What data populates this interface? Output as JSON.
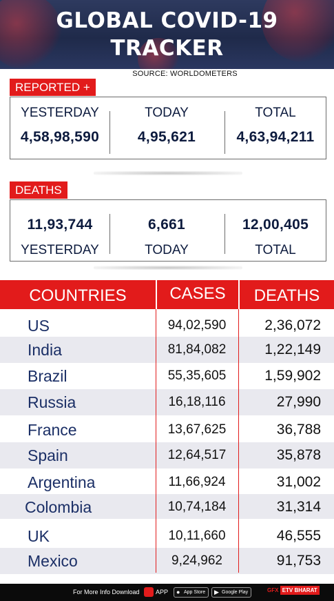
{
  "header": {
    "title_line1": "GLOBAL COVID-19",
    "title_line2": "TRACKER",
    "source": "SOURCE: WORLDOMETERS"
  },
  "reported": {
    "tag": "REPORTED +",
    "yesterday_label": "YESTERDAY",
    "today_label": "TODAY",
    "total_label": "TOTAL",
    "yesterday": "4,58,98,590",
    "today": "4,95,621",
    "total": "4,63,94,211"
  },
  "deaths": {
    "tag": "DEATHS",
    "yesterday_label": "YESTERDAY",
    "today_label": "TODAY",
    "total_label": "TOTAL",
    "yesterday": "11,93,744",
    "today": "6,661",
    "total": "12,00,405"
  },
  "table": {
    "headers": [
      "COUNTRIES",
      "CASES",
      "DEATHS"
    ],
    "rows": [
      {
        "country": "US",
        "cases": "94,02,590",
        "deaths": "2,36,072"
      },
      {
        "country": "India",
        "cases": "81,84,082",
        "deaths": "1,22,149"
      },
      {
        "country": "Brazil",
        "cases": "55,35,605",
        "deaths": "1,59,902"
      },
      {
        "country": "Russia",
        "cases": "16,18,116",
        "deaths": "27,990"
      },
      {
        "country": "France",
        "cases": "13,67,625",
        "deaths": "36,788"
      },
      {
        "country": "Spain",
        "cases": "12,64,517",
        "deaths": "35,878"
      },
      {
        "country": "Argentina",
        "cases": "11,66,924",
        "deaths": "31,002"
      },
      {
        "country": "Colombia",
        "cases": "10,74,184",
        "deaths": "31,314"
      },
      {
        "country": "UK",
        "cases": "10,11,660",
        "deaths": "46,555"
      },
      {
        "country": "Mexico",
        "cases": "9,24,962",
        "deaths": "91,753"
      }
    ]
  },
  "footer": {
    "info_text": "For More Info Download",
    "app_text": "APP",
    "app_store": "App Store",
    "google_play": "Google Play",
    "gfx": "GFX",
    "brand": "ETV BHARAT"
  },
  "colors": {
    "accent_red": "#e21b1b",
    "navy_text": "#0d1b3e",
    "header_bg": "#1f2a4a",
    "alt_row": "#e9e9ef"
  },
  "icons": [
    "virus-background-icon",
    "etv-app-icon",
    "apple-icon",
    "google-play-icon"
  ]
}
